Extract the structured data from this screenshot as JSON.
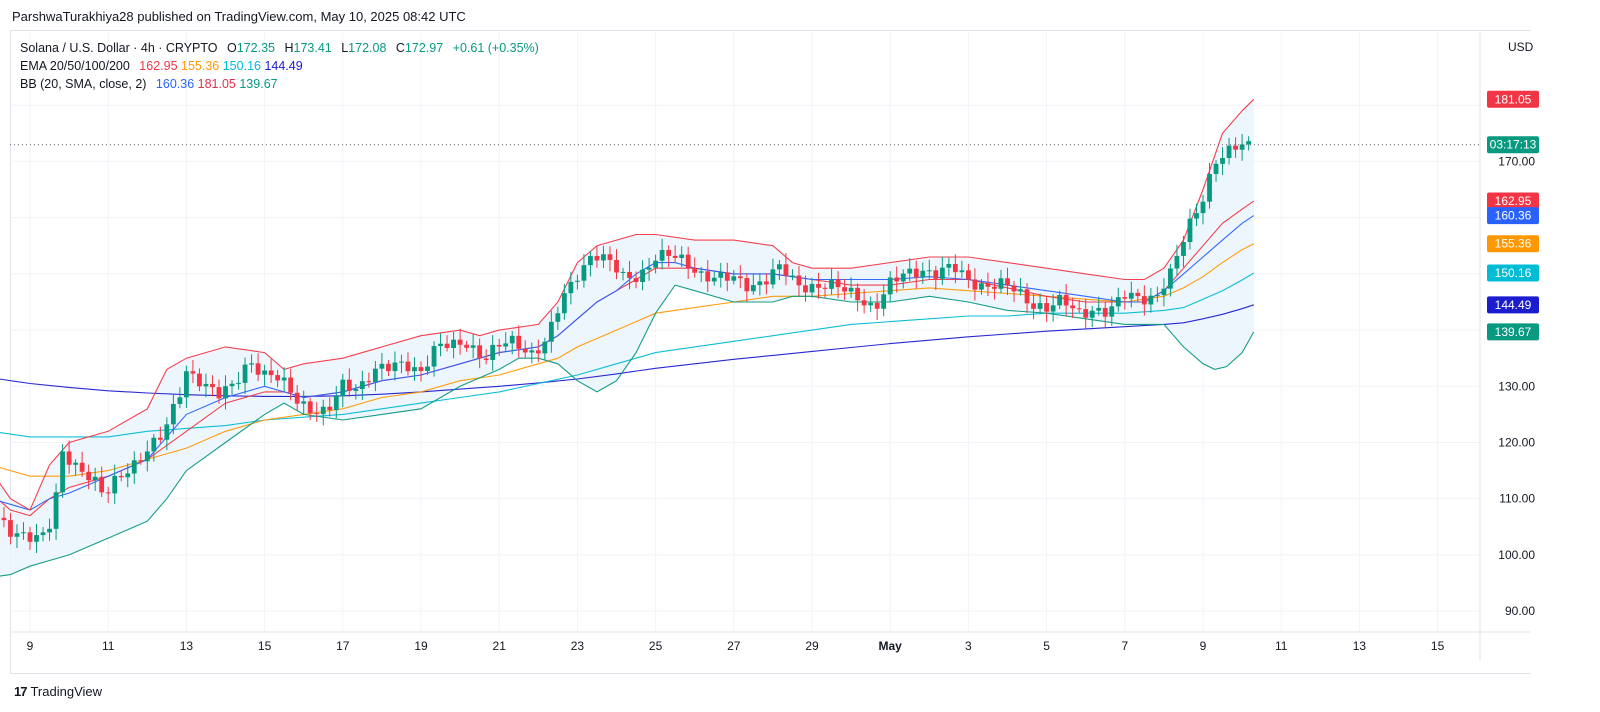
{
  "header": {
    "published": "ParshwaTurakhiya28 published on TradingView.com, May 10, 2025 08:42 UTC"
  },
  "legend": {
    "symbol": "Solana / U.S. Dollar · 4h · CRYPTO",
    "ohlc": {
      "o_label": "O",
      "o": "172.35",
      "h_label": "H",
      "h": "173.41",
      "l_label": "L",
      "l": "172.08",
      "c_label": "C",
      "c": "172.97",
      "change": "+0.61 (+0.35%)"
    },
    "ema": {
      "label": "EMA 20/50/100/200",
      "v20": "162.95",
      "v50": "155.36",
      "v100": "150.16",
      "v200": "144.49"
    },
    "bb": {
      "label": "BB (20, SMA, close, 2)",
      "basis": "160.36",
      "upper": "181.05",
      "lower": "139.67"
    }
  },
  "axis": {
    "currency": "USD",
    "countdown": "03:17:13"
  },
  "brand": {
    "logo": "17",
    "name": "TradingView"
  },
  "colors": {
    "up": "#089981",
    "down": "#f23645",
    "ema20": "#f23645",
    "ema50": "#ff9800",
    "ema100": "#00bcd4",
    "ema200": "#1c1ccf",
    "bb_basis": "#2962ff",
    "bb_upper": "#f23645",
    "bb_lower": "#089981",
    "bb_fill": "#eaf4fb"
  },
  "chart_data": {
    "type": "candlestick",
    "title": "Solana / U.S. Dollar · 4h · CRYPTO",
    "ylim": [
      87,
      190
    ],
    "y_ticks": [
      90,
      100,
      110,
      120,
      130,
      170
    ],
    "y_tick_labels": [
      "90.00",
      "100.00",
      "110.00",
      "120.00",
      "130.00",
      "170.00"
    ],
    "x_ticks": [
      {
        "day": 9,
        "label": "9"
      },
      {
        "day": 11,
        "label": "11"
      },
      {
        "day": 13,
        "label": "13"
      },
      {
        "day": 15,
        "label": "15"
      },
      {
        "day": 17,
        "label": "17"
      },
      {
        "day": 19,
        "label": "19"
      },
      {
        "day": 21,
        "label": "21"
      },
      {
        "day": 23,
        "label": "23"
      },
      {
        "day": 25,
        "label": "25"
      },
      {
        "day": 27,
        "label": "27"
      },
      {
        "day": 29,
        "label": "29"
      },
      {
        "day": 31,
        "label": "May"
      },
      {
        "day": 33,
        "label": "3"
      },
      {
        "day": 35,
        "label": "5"
      },
      {
        "day": 37,
        "label": "7"
      },
      {
        "day": 39,
        "label": "9"
      },
      {
        "day": 41,
        "label": "11"
      },
      {
        "day": 43,
        "label": "13"
      },
      {
        "day": 45,
        "label": "15"
      }
    ],
    "last_price": 172.97,
    "price_badges": [
      {
        "value": 181.05,
        "label": "181.05",
        "color": "#f23645"
      },
      {
        "value": 172.97,
        "label": "03:17:13",
        "color": "#089981"
      },
      {
        "value": 162.95,
        "label": "162.95",
        "color": "#f23645"
      },
      {
        "value": 160.36,
        "label": "160.36",
        "color": "#2962ff"
      },
      {
        "value": 155.36,
        "label": "155.36",
        "color": "#ff9800"
      },
      {
        "value": 150.16,
        "label": "150.16",
        "color": "#00bcd4"
      },
      {
        "value": 144.49,
        "label": "144.49",
        "color": "#1c1ccf"
      },
      {
        "value": 139.67,
        "label": "139.67",
        "color": "#089981"
      }
    ],
    "price_path": [
      [
        8.0,
        107
      ],
      [
        8.5,
        104
      ],
      [
        8.9,
        104
      ],
      [
        9.3,
        103
      ],
      [
        9.6,
        106
      ],
      [
        9.8,
        118
      ],
      [
        10.2,
        116
      ],
      [
        10.6,
        114
      ],
      [
        10.9,
        110
      ],
      [
        11.2,
        113
      ],
      [
        11.6,
        116
      ],
      [
        12.0,
        119
      ],
      [
        12.4,
        121
      ],
      [
        12.8,
        128
      ],
      [
        13.0,
        133
      ],
      [
        13.4,
        131
      ],
      [
        13.8,
        128
      ],
      [
        14.2,
        130
      ],
      [
        14.6,
        135
      ],
      [
        15.0,
        132
      ],
      [
        15.4,
        131
      ],
      [
        15.8,
        128
      ],
      [
        16.2,
        126
      ],
      [
        16.6,
        125
      ],
      [
        17.0,
        130
      ],
      [
        17.4,
        130
      ],
      [
        17.8,
        133
      ],
      [
        18.2,
        133
      ],
      [
        18.6,
        134
      ],
      [
        19.0,
        133
      ],
      [
        19.4,
        137
      ],
      [
        19.8,
        137
      ],
      [
        20.2,
        138
      ],
      [
        20.6,
        135
      ],
      [
        21.0,
        137
      ],
      [
        21.4,
        138
      ],
      [
        21.8,
        136
      ],
      [
        22.2,
        138
      ],
      [
        22.6,
        145
      ],
      [
        23.0,
        150
      ],
      [
        23.4,
        154
      ],
      [
        23.8,
        152
      ],
      [
        24.2,
        149
      ],
      [
        24.6,
        150
      ],
      [
        25.0,
        153
      ],
      [
        25.4,
        153
      ],
      [
        25.8,
        152
      ],
      [
        26.2,
        150
      ],
      [
        26.6,
        149
      ],
      [
        27.0,
        149
      ],
      [
        27.4,
        148
      ],
      [
        27.8,
        149
      ],
      [
        28.2,
        151
      ],
      [
        28.6,
        148
      ],
      [
        29.0,
        148
      ],
      [
        29.4,
        148
      ],
      [
        29.8,
        147
      ],
      [
        30.2,
        146
      ],
      [
        30.6,
        144
      ],
      [
        31.0,
        148
      ],
      [
        31.4,
        150
      ],
      [
        31.8,
        151
      ],
      [
        32.2,
        150
      ],
      [
        32.6,
        151
      ],
      [
        33.0,
        149
      ],
      [
        33.4,
        148
      ],
      [
        33.8,
        148
      ],
      [
        34.2,
        147
      ],
      [
        34.6,
        145
      ],
      [
        35.0,
        144
      ],
      [
        35.4,
        145
      ],
      [
        35.8,
        143
      ],
      [
        36.2,
        144
      ],
      [
        36.6,
        143
      ],
      [
        37.0,
        146
      ],
      [
        37.4,
        146
      ],
      [
        37.8,
        146
      ],
      [
        38.2,
        150
      ],
      [
        38.6,
        158
      ],
      [
        39.0,
        164
      ],
      [
        39.3,
        170
      ],
      [
        39.6,
        171
      ],
      [
        40.0,
        173
      ],
      [
        40.3,
        172.97
      ]
    ],
    "bb_upper": [
      [
        8.0,
        115
      ],
      [
        8.5,
        110
      ],
      [
        9.0,
        108
      ],
      [
        9.5,
        116
      ],
      [
        10.0,
        120
      ],
      [
        11.0,
        122
      ],
      [
        12.0,
        126
      ],
      [
        12.5,
        133
      ],
      [
        13.0,
        135
      ],
      [
        14.0,
        137
      ],
      [
        15.0,
        136
      ],
      [
        15.5,
        133
      ],
      [
        16.0,
        134
      ],
      [
        17.0,
        135
      ],
      [
        18.0,
        137
      ],
      [
        19.0,
        139
      ],
      [
        20.0,
        140
      ],
      [
        20.5,
        139
      ],
      [
        21.0,
        140
      ],
      [
        22.0,
        141
      ],
      [
        22.5,
        145
      ],
      [
        23.0,
        152
      ],
      [
        23.5,
        155
      ],
      [
        24.0,
        156
      ],
      [
        24.5,
        157
      ],
      [
        25.0,
        157
      ],
      [
        26.0,
        156
      ],
      [
        27.0,
        156
      ],
      [
        28.0,
        155
      ],
      [
        28.5,
        152
      ],
      [
        29.0,
        151
      ],
      [
        30.0,
        151
      ],
      [
        31.0,
        152
      ],
      [
        32.0,
        153
      ],
      [
        33.0,
        153
      ],
      [
        34.0,
        152
      ],
      [
        35.0,
        151
      ],
      [
        36.0,
        150
      ],
      [
        37.0,
        149
      ],
      [
        37.5,
        149
      ],
      [
        38.0,
        151
      ],
      [
        38.5,
        156
      ],
      [
        39.0,
        165
      ],
      [
        39.5,
        175
      ],
      [
        40.0,
        179
      ],
      [
        40.3,
        181.05
      ]
    ],
    "bb_basis": [
      [
        8.0,
        110
      ],
      [
        8.5,
        109
      ],
      [
        9.0,
        108
      ],
      [
        9.5,
        110
      ],
      [
        10.0,
        111
      ],
      [
        11.0,
        114
      ],
      [
        12.0,
        117
      ],
      [
        12.5,
        121
      ],
      [
        13.0,
        125
      ],
      [
        14.0,
        128
      ],
      [
        15.0,
        130
      ],
      [
        15.5,
        129
      ],
      [
        16.0,
        128
      ],
      [
        17.0,
        129
      ],
      [
        18.0,
        131
      ],
      [
        19.0,
        132
      ],
      [
        20.0,
        134
      ],
      [
        21.0,
        136
      ],
      [
        22.0,
        137
      ],
      [
        22.5,
        139
      ],
      [
        23.0,
        142
      ],
      [
        23.5,
        145
      ],
      [
        24.0,
        147
      ],
      [
        24.5,
        150
      ],
      [
        25.0,
        152
      ],
      [
        25.5,
        152
      ],
      [
        26.0,
        151
      ],
      [
        27.0,
        150
      ],
      [
        28.0,
        150
      ],
      [
        29.0,
        149
      ],
      [
        30.0,
        149
      ],
      [
        31.0,
        149
      ],
      [
        32.0,
        149.5
      ],
      [
        33.0,
        149
      ],
      [
        34.0,
        148
      ],
      [
        35.0,
        147
      ],
      [
        36.0,
        146
      ],
      [
        37.0,
        145
      ],
      [
        37.5,
        145
      ],
      [
        38.0,
        147
      ],
      [
        38.5,
        150
      ],
      [
        39.0,
        153
      ],
      [
        39.5,
        156
      ],
      [
        40.0,
        159
      ],
      [
        40.3,
        160.36
      ]
    ],
    "bb_lower": [
      [
        8.0,
        96
      ],
      [
        8.5,
        96.5
      ],
      [
        9.0,
        98
      ],
      [
        9.5,
        99
      ],
      [
        10.0,
        100
      ],
      [
        11.0,
        103
      ],
      [
        12.0,
        106
      ],
      [
        12.5,
        110
      ],
      [
        13.0,
        115
      ],
      [
        14.0,
        120
      ],
      [
        15.0,
        125
      ],
      [
        15.5,
        127
      ],
      [
        16.0,
        125
      ],
      [
        17.0,
        124
      ],
      [
        18.0,
        125
      ],
      [
        19.0,
        126
      ],
      [
        19.5,
        128
      ],
      [
        20.0,
        130
      ],
      [
        21.0,
        133
      ],
      [
        21.5,
        135
      ],
      [
        22.0,
        135
      ],
      [
        22.5,
        134
      ],
      [
        23.0,
        131
      ],
      [
        23.5,
        129
      ],
      [
        24.0,
        131
      ],
      [
        24.5,
        136
      ],
      [
        25.0,
        143
      ],
      [
        25.5,
        148
      ],
      [
        26.0,
        147
      ],
      [
        27.0,
        145
      ],
      [
        28.0,
        145
      ],
      [
        28.5,
        146
      ],
      [
        29.0,
        146
      ],
      [
        30.0,
        145
      ],
      [
        31.0,
        145
      ],
      [
        32.0,
        146
      ],
      [
        33.0,
        145
      ],
      [
        34.0,
        143.5
      ],
      [
        35.0,
        143
      ],
      [
        36.0,
        142
      ],
      [
        37.0,
        141
      ],
      [
        37.5,
        141
      ],
      [
        38.0,
        141
      ],
      [
        38.5,
        137
      ],
      [
        39.0,
        134
      ],
      [
        39.3,
        133
      ],
      [
        39.6,
        133.5
      ],
      [
        40.0,
        136
      ],
      [
        40.3,
        139.67
      ]
    ],
    "ema20": [
      [
        8.0,
        111
      ],
      [
        8.5,
        108
      ],
      [
        9.0,
        107
      ],
      [
        9.5,
        110
      ],
      [
        10.0,
        112
      ],
      [
        11.0,
        114
      ],
      [
        12.0,
        117
      ],
      [
        13.0,
        122
      ],
      [
        14.0,
        127
      ],
      [
        15.0,
        129
      ],
      [
        15.5,
        129
      ],
      [
        16.0,
        128
      ],
      [
        17.0,
        129
      ],
      [
        18.0,
        131
      ],
      [
        19.0,
        132
      ],
      [
        20.0,
        134
      ],
      [
        21.0,
        136
      ],
      [
        22.0,
        137
      ],
      [
        22.5,
        139
      ],
      [
        23.0,
        142
      ],
      [
        23.5,
        145
      ],
      [
        24.0,
        147
      ],
      [
        24.5,
        149
      ],
      [
        25.0,
        151
      ],
      [
        26.0,
        151
      ],
      [
        27.0,
        150
      ],
      [
        28.0,
        150
      ],
      [
        29.0,
        149
      ],
      [
        30.0,
        148
      ],
      [
        31.0,
        148
      ],
      [
        32.0,
        149
      ],
      [
        33.0,
        149
      ],
      [
        34.0,
        147.5
      ],
      [
        35.0,
        146
      ],
      [
        36.0,
        145
      ],
      [
        37.0,
        145
      ],
      [
        37.5,
        145
      ],
      [
        38.0,
        147
      ],
      [
        38.5,
        151
      ],
      [
        39.0,
        155
      ],
      [
        39.5,
        159
      ],
      [
        40.0,
        161.5
      ],
      [
        40.3,
        162.95
      ]
    ],
    "ema50": [
      [
        8.0,
        116
      ],
      [
        8.5,
        115
      ],
      [
        9.0,
        114
      ],
      [
        10.0,
        114
      ],
      [
        11.0,
        115
      ],
      [
        12.0,
        117
      ],
      [
        13.0,
        119
      ],
      [
        14.0,
        122
      ],
      [
        15.0,
        124
      ],
      [
        16.0,
        125
      ],
      [
        17.0,
        126
      ],
      [
        18.0,
        128
      ],
      [
        19.0,
        129
      ],
      [
        20.0,
        131
      ],
      [
        21.0,
        132
      ],
      [
        22.0,
        134
      ],
      [
        22.5,
        135
      ],
      [
        23.0,
        137
      ],
      [
        24.0,
        140
      ],
      [
        25.0,
        143
      ],
      [
        26.0,
        144
      ],
      [
        27.0,
        145
      ],
      [
        28.0,
        146
      ],
      [
        29.0,
        146
      ],
      [
        30.0,
        146.5
      ],
      [
        31.0,
        147
      ],
      [
        32.0,
        147.5
      ],
      [
        33.0,
        147
      ],
      [
        34.0,
        146.5
      ],
      [
        35.0,
        146
      ],
      [
        36.0,
        145.5
      ],
      [
        37.0,
        145
      ],
      [
        38.0,
        146
      ],
      [
        38.5,
        147.5
      ],
      [
        39.0,
        149.5
      ],
      [
        39.5,
        152
      ],
      [
        40.0,
        154.3
      ],
      [
        40.3,
        155.36
      ]
    ],
    "ema100": [
      [
        8.0,
        122
      ],
      [
        9.0,
        121
      ],
      [
        10.0,
        121
      ],
      [
        11.0,
        121
      ],
      [
        12.0,
        122
      ],
      [
        13.0,
        122.5
      ],
      [
        14.0,
        123
      ],
      [
        15.0,
        124
      ],
      [
        16.0,
        124.5
      ],
      [
        17.0,
        125
      ],
      [
        18.0,
        126
      ],
      [
        19.0,
        127
      ],
      [
        20.0,
        128
      ],
      [
        21.0,
        129
      ],
      [
        22.0,
        130.5
      ],
      [
        23.0,
        132
      ],
      [
        24.0,
        134
      ],
      [
        25.0,
        136
      ],
      [
        26.0,
        137
      ],
      [
        27.0,
        138
      ],
      [
        28.0,
        139
      ],
      [
        29.0,
        140
      ],
      [
        30.0,
        141
      ],
      [
        31.0,
        141.5
      ],
      [
        32.0,
        142
      ],
      [
        33.0,
        142.5
      ],
      [
        34.0,
        142.5
      ],
      [
        35.0,
        143
      ],
      [
        36.0,
        143
      ],
      [
        37.0,
        143
      ],
      [
        38.0,
        143.5
      ],
      [
        38.5,
        144
      ],
      [
        39.0,
        145.5
      ],
      [
        39.5,
        147
      ],
      [
        40.0,
        148.9
      ],
      [
        40.3,
        150.16
      ]
    ],
    "ema200": [
      [
        8.0,
        131.5
      ],
      [
        9.0,
        130.5
      ],
      [
        10.0,
        129.8
      ],
      [
        11.0,
        129.2
      ],
      [
        12.0,
        128.8
      ],
      [
        13.0,
        128.5
      ],
      [
        14.0,
        128.3
      ],
      [
        15.0,
        128.2
      ],
      [
        16.0,
        128.2
      ],
      [
        17.0,
        128.3
      ],
      [
        18.0,
        128.6
      ],
      [
        19.0,
        129
      ],
      [
        20.0,
        129.5
      ],
      [
        21.0,
        130
      ],
      [
        22.0,
        130.6
      ],
      [
        23.0,
        131.3
      ],
      [
        24.0,
        132.2
      ],
      [
        25.0,
        133.2
      ],
      [
        26.0,
        134
      ],
      [
        27.0,
        134.8
      ],
      [
        28.0,
        135.5
      ],
      [
        29.0,
        136.2
      ],
      [
        30.0,
        136.9
      ],
      [
        31.0,
        137.6
      ],
      [
        32.0,
        138.2
      ],
      [
        33.0,
        138.8
      ],
      [
        34.0,
        139.3
      ],
      [
        35.0,
        139.8
      ],
      [
        36.0,
        140.2
      ],
      [
        37.0,
        140.6
      ],
      [
        38.0,
        141
      ],
      [
        38.5,
        141.3
      ],
      [
        39.0,
        142
      ],
      [
        39.5,
        142.8
      ],
      [
        40.0,
        143.8
      ],
      [
        40.3,
        144.49
      ]
    ]
  }
}
